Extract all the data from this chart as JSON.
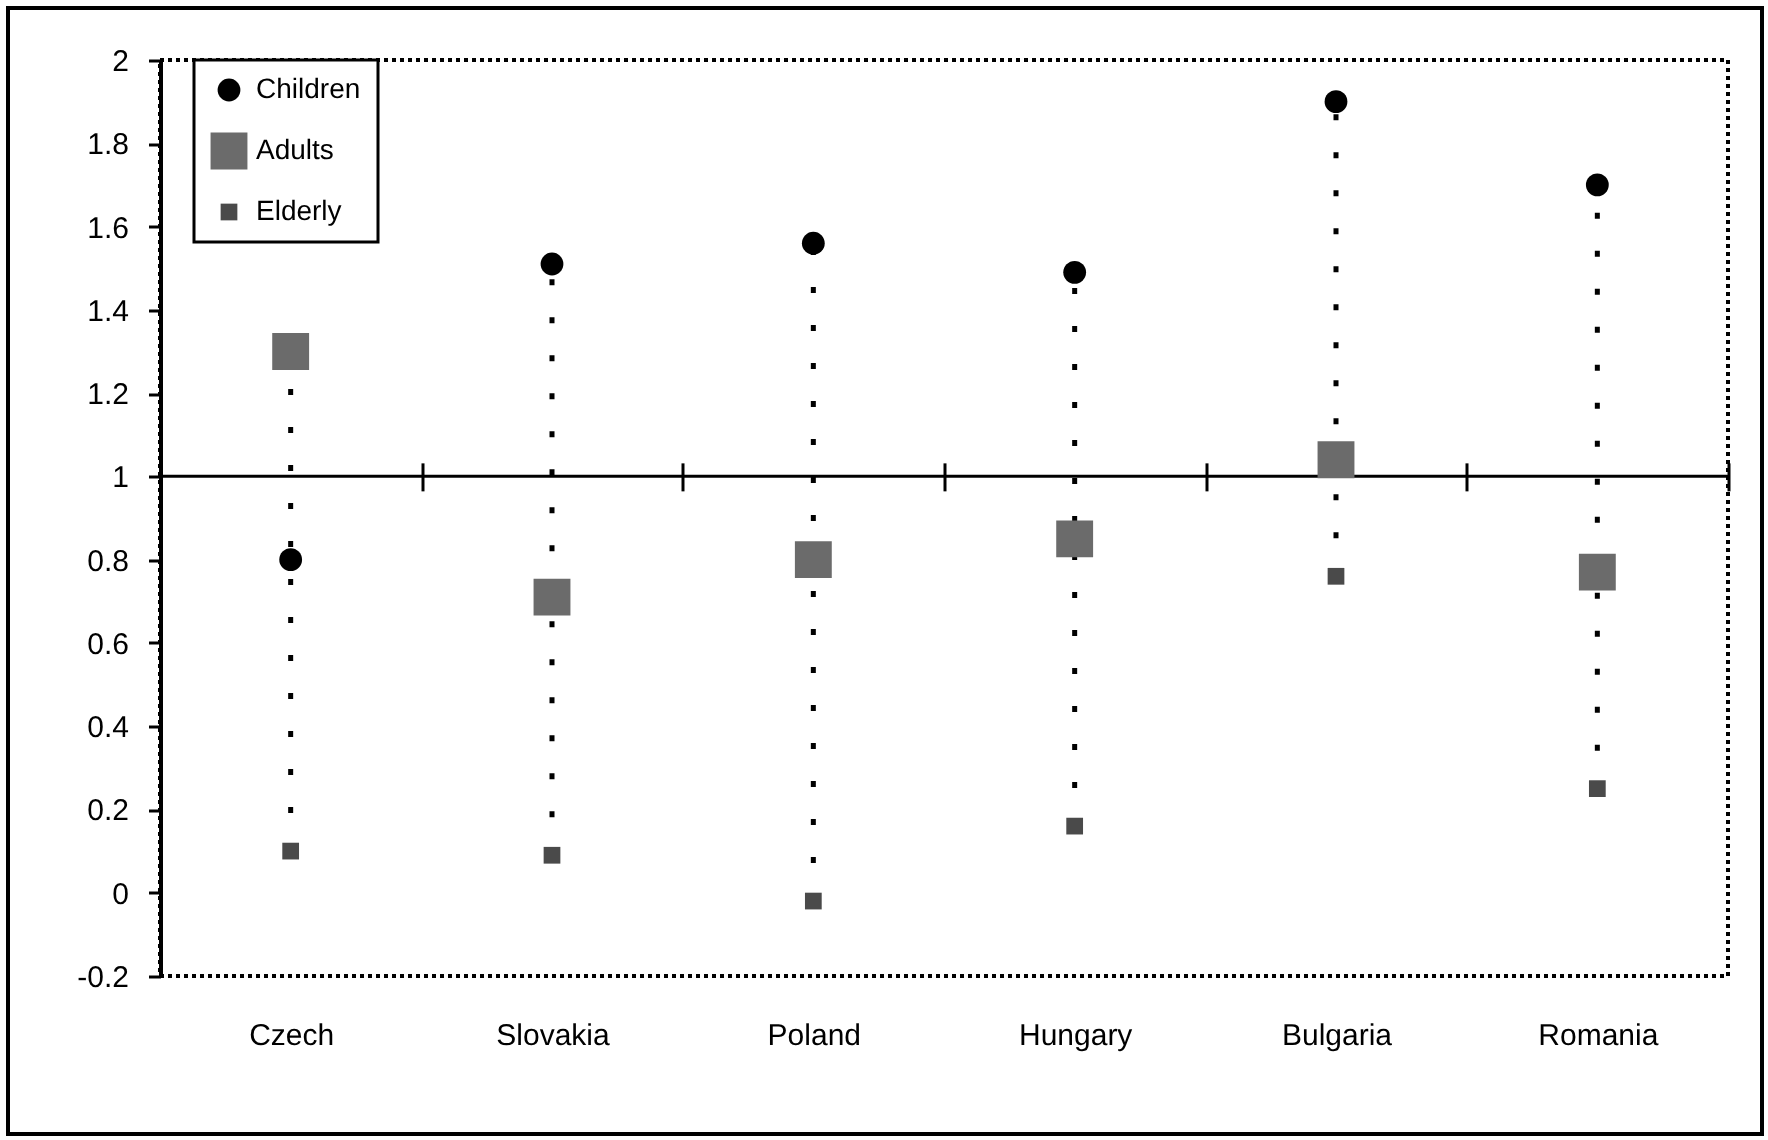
{
  "chart_data": {
    "type": "scatter",
    "categories": [
      "Czech",
      "Slovakia",
      "Poland",
      "Hungary",
      "Bulgaria",
      "Romania"
    ],
    "series": [
      {
        "name": "Children",
        "color": "#000000",
        "marker": "circle",
        "values": [
          0.8,
          1.51,
          1.56,
          1.49,
          1.9,
          1.7
        ]
      },
      {
        "name": "Adults",
        "color": "#6b6b6b",
        "marker": "square",
        "values": [
          1.3,
          0.71,
          0.8,
          0.85,
          1.04,
          0.77
        ]
      },
      {
        "name": "Elderly",
        "color": "#4a4a4a",
        "marker": "square",
        "values": [
          0.1,
          0.09,
          -0.02,
          0.16,
          0.76,
          0.25
        ]
      }
    ],
    "ylim": [
      -0.2,
      2
    ],
    "yticks": [
      -0.2,
      0,
      0.2,
      0.4,
      0.6,
      0.8,
      1,
      1.2,
      1.4,
      1.6,
      1.8,
      2
    ],
    "ref_lines": [
      {
        "axis": "y",
        "value": 1
      }
    ],
    "legend": "top left"
  }
}
